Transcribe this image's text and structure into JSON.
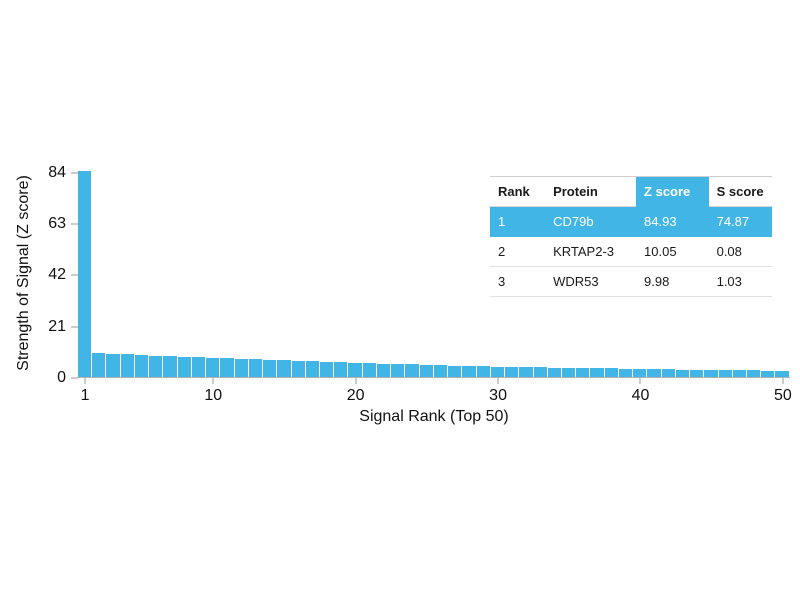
{
  "chart_data": {
    "type": "bar",
    "title": "",
    "xlabel": "Signal Rank (Top 50)",
    "ylabel": "Strength of Signal (Z score)",
    "bar_color": "#41b6e6",
    "ylim": [
      0,
      86
    ],
    "yticks": [
      0,
      21,
      42,
      63,
      84
    ],
    "xticks": [
      1,
      10,
      20,
      30,
      40,
      50
    ],
    "x_range": [
      1,
      50
    ],
    "grid": "off",
    "values": [
      84.93,
      10.05,
      9.98,
      9.65,
      9.4,
      9.2,
      9.0,
      8.8,
      8.55,
      8.3,
      8.1,
      7.9,
      7.7,
      7.5,
      7.2,
      7.0,
      6.8,
      6.6,
      6.4,
      6.2,
      6.0,
      5.85,
      5.7,
      5.55,
      5.4,
      5.25,
      5.1,
      5.0,
      4.85,
      4.7,
      4.6,
      4.5,
      4.4,
      4.3,
      4.2,
      4.1,
      4.0,
      3.9,
      3.8,
      3.7,
      3.65,
      3.55,
      3.45,
      3.4,
      3.3,
      3.25,
      3.15,
      3.1,
      3.0,
      2.95
    ]
  },
  "table": {
    "accent_color": "#41b6e6",
    "headers": [
      "Rank",
      "Protein",
      "Z score",
      "S score"
    ],
    "highlighted_header": "Z score",
    "rows": [
      {
        "rank": "1",
        "protein": "CD79b",
        "z": "84.93",
        "s": "74.87",
        "highlight": true
      },
      {
        "rank": "2",
        "protein": "KRTAP2-3",
        "z": "10.05",
        "s": "0.08",
        "highlight": false
      },
      {
        "rank": "3",
        "protein": "WDR53",
        "z": "9.98",
        "s": "1.03",
        "highlight": false
      }
    ]
  }
}
